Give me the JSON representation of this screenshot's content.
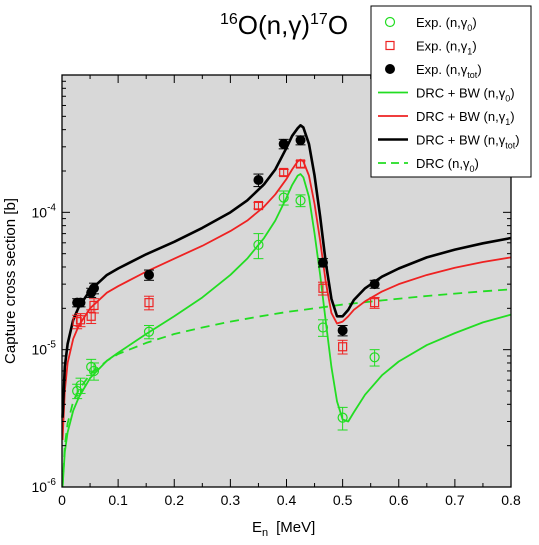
{
  "chart_data": {
    "type": "scatter",
    "title_parts": {
      "a_mass": "16",
      "a_sym": "O(n,γ)",
      "b_mass": "17",
      "b_sym": "O"
    },
    "xlabel": {
      "main": "E",
      "sub": "n",
      "unit": "[MeV]"
    },
    "ylabel": "Capture cross section  [b]",
    "x_scale": "linear",
    "y_scale": "log",
    "xlim": [
      0,
      0.8
    ],
    "ylim": [
      1e-06,
      0.001
    ],
    "x_ticks": [
      "0",
      "0.1",
      "0.2",
      "0.3",
      "0.4",
      "0.5",
      "0.6",
      "0.7",
      "0.8"
    ],
    "y_tick_labels": [
      {
        "value": 1e-06,
        "base": "10",
        "exp": "-6"
      },
      {
        "value": 1e-05,
        "base": "10",
        "exp": "-5"
      },
      {
        "value": 0.0001,
        "base": "10",
        "exp": "-4"
      }
    ],
    "background_color": "#d8d8d8",
    "grid": false,
    "legend_position": "top-right",
    "legend": [
      {
        "label": "Exp. (n,γ",
        "sub": "0",
        "tail": ")",
        "style": "open-circle",
        "color": "#22dd22"
      },
      {
        "label": "Exp. (n,γ",
        "sub": "1",
        "tail": ")",
        "style": "open-square",
        "color": "#ee2222"
      },
      {
        "label": "Exp. (n,γ",
        "sub": "tot",
        "tail": ")",
        "style": "filled-circle",
        "color": "#000000"
      },
      {
        "label": "DRC + BW (n,γ",
        "sub": "0",
        "tail": ")",
        "style": "solid",
        "color": "#22dd22"
      },
      {
        "label": "DRC + BW (n,γ",
        "sub": "1",
        "tail": ")",
        "style": "solid",
        "color": "#ee2222"
      },
      {
        "label": "DRC + BW (n,γ",
        "sub": "tot",
        "tail": ")",
        "style": "solid",
        "color": "#000000"
      },
      {
        "label": "DRC (n,γ",
        "sub": "0",
        "tail": ")",
        "style": "dashed",
        "color": "#22dd22"
      }
    ],
    "points": {
      "gamma0": [
        {
          "x": 0.027,
          "y": 5e-06,
          "err": 6e-07
        },
        {
          "x": 0.033,
          "y": 5.5e-06,
          "err": 7e-07
        },
        {
          "x": 0.052,
          "y": 7.5e-06,
          "err": 1e-06
        },
        {
          "x": 0.057,
          "y": 7e-06,
          "err": 1e-06
        },
        {
          "x": 0.155,
          "y": 1.35e-05,
          "err": 1.5e-06
        },
        {
          "x": 0.35,
          "y": 5.8e-05,
          "err": 1.2e-05
        },
        {
          "x": 0.395,
          "y": 0.000128,
          "err": 1.5e-05
        },
        {
          "x": 0.425,
          "y": 0.000122,
          "err": 1.2e-05
        },
        {
          "x": 0.465,
          "y": 1.45e-05,
          "err": 2e-06
        },
        {
          "x": 0.5,
          "y": 3.2e-06,
          "err": 6e-07
        },
        {
          "x": 0.557,
          "y": 8.8e-06,
          "err": 1.2e-06
        }
      ],
      "gamma1": [
        {
          "x": 0.027,
          "y": 1.6e-05,
          "err": 1.8e-06
        },
        {
          "x": 0.033,
          "y": 1.65e-05,
          "err": 1.8e-06
        },
        {
          "x": 0.052,
          "y": 1.75e-05,
          "err": 2e-06
        },
        {
          "x": 0.057,
          "y": 2.1e-05,
          "err": 2.5e-06
        },
        {
          "x": 0.155,
          "y": 2.2e-05,
          "err": 2.5e-06
        },
        {
          "x": 0.35,
          "y": 0.000112,
          "err": 6e-06
        },
        {
          "x": 0.395,
          "y": 0.000195,
          "err": 1e-05
        },
        {
          "x": 0.425,
          "y": 0.000225,
          "err": 1.2e-05
        },
        {
          "x": 0.465,
          "y": 2.8e-05,
          "err": 3e-06
        },
        {
          "x": 0.5,
          "y": 1.05e-05,
          "err": 1.2e-06
        },
        {
          "x": 0.557,
          "y": 2.2e-05,
          "err": 2e-06
        }
      ],
      "gammatot": [
        {
          "x": 0.027,
          "y": 2.2e-05,
          "err": 1.5e-06
        },
        {
          "x": 0.033,
          "y": 2.2e-05,
          "err": 1.5e-06
        },
        {
          "x": 0.052,
          "y": 2.6e-05,
          "err": 2e-06
        },
        {
          "x": 0.057,
          "y": 2.8e-05,
          "err": 2.5e-06
        },
        {
          "x": 0.155,
          "y": 3.5e-05,
          "err": 3e-06
        },
        {
          "x": 0.35,
          "y": 0.000172,
          "err": 1.8e-05
        },
        {
          "x": 0.395,
          "y": 0.000315,
          "err": 2.5e-05
        },
        {
          "x": 0.425,
          "y": 0.000335,
          "err": 2.5e-05
        },
        {
          "x": 0.465,
          "y": 4.3e-05,
          "err": 3e-06
        },
        {
          "x": 0.5,
          "y": 1.38e-05,
          "err": 1.2e-06
        },
        {
          "x": 0.557,
          "y": 3e-05,
          "err": 2e-06
        }
      ]
    },
    "curves": {
      "drc_bw_gamma0": {
        "x": [
          0.001,
          0.005,
          0.01,
          0.02,
          0.03,
          0.05,
          0.08,
          0.1,
          0.15,
          0.2,
          0.25,
          0.3,
          0.33,
          0.36,
          0.38,
          0.4,
          0.41,
          0.42,
          0.425,
          0.43,
          0.44,
          0.45,
          0.46,
          0.47,
          0.48,
          0.49,
          0.5,
          0.51,
          0.52,
          0.54,
          0.57,
          0.6,
          0.65,
          0.7,
          0.75,
          0.8
        ],
        "y": [
          1e-06,
          1.8e-06,
          2.5e-06,
          3.6e-06,
          4.5e-06,
          6.2e-06,
          8.3e-06,
          9.5e-06,
          1.3e-05,
          1.75e-05,
          2.4e-05,
          3.5e-05,
          4.6e-05,
          6.5e-05,
          8.7e-05,
          0.000128,
          0.000158,
          0.000185,
          0.00019,
          0.00018,
          0.00013,
          7e-05,
          3.5e-05,
          1.6e-05,
          7.5e-06,
          4.2e-06,
          3.1e-06,
          3e-06,
          3.5e-06,
          4.7e-06,
          6.5e-06,
          8.2e-06,
          1.08e-05,
          1.32e-05,
          1.58e-05,
          1.8e-05
        ]
      },
      "drc_bw_gamma1": {
        "x": [
          0.001,
          0.005,
          0.01,
          0.02,
          0.03,
          0.05,
          0.08,
          0.1,
          0.15,
          0.2,
          0.25,
          0.3,
          0.33,
          0.36,
          0.38,
          0.4,
          0.41,
          0.42,
          0.425,
          0.43,
          0.44,
          0.45,
          0.46,
          0.47,
          0.48,
          0.49,
          0.5,
          0.51,
          0.52,
          0.54,
          0.57,
          0.6,
          0.65,
          0.7,
          0.75,
          0.8
        ],
        "y": [
          2.2e-06,
          5e-06,
          8e-06,
          1.2e-05,
          1.5e-05,
          2e-05,
          2.6e-05,
          2.9e-05,
          3.7e-05,
          4.6e-05,
          5.7e-05,
          7.3e-05,
          8.7e-05,
          0.00011,
          0.000135,
          0.000175,
          0.000205,
          0.000235,
          0.000242,
          0.000235,
          0.000185,
          0.000115,
          6.2e-05,
          3.1e-05,
          1.85e-05,
          1.55e-05,
          1.6e-05,
          1.75e-05,
          1.95e-05,
          2.25e-05,
          2.65e-05,
          3e-05,
          3.5e-05,
          3.95e-05,
          4.35e-05,
          4.7e-05
        ]
      },
      "drc_bw_gammatot": {
        "x": [
          0.001,
          0.005,
          0.01,
          0.02,
          0.03,
          0.05,
          0.08,
          0.1,
          0.15,
          0.2,
          0.25,
          0.3,
          0.33,
          0.36,
          0.38,
          0.4,
          0.41,
          0.42,
          0.425,
          0.43,
          0.44,
          0.45,
          0.46,
          0.47,
          0.48,
          0.49,
          0.5,
          0.51,
          0.52,
          0.54,
          0.57,
          0.6,
          0.65,
          0.7,
          0.75,
          0.8
        ],
        "y": [
          3.2e-06,
          7.5e-06,
          1.1e-05,
          1.65e-05,
          2.05e-05,
          2.7e-05,
          3.5e-05,
          3.9e-05,
          4.95e-05,
          6.1e-05,
          7.7e-05,
          0.0001,
          0.000122,
          0.00016,
          0.000205,
          0.000295,
          0.00036,
          0.00041,
          0.00043,
          0.000415,
          0.000315,
          0.000185,
          9.3e-05,
          4.3e-05,
          2.35e-05,
          1.75e-05,
          1.75e-05,
          1.95e-05,
          2.3e-05,
          2.8e-05,
          3.4e-05,
          3.9e-05,
          4.7e-05,
          5.35e-05,
          5.95e-05,
          6.5e-05
        ]
      },
      "drc_gamma0": {
        "x": [
          0.001,
          0.005,
          0.01,
          0.02,
          0.03,
          0.05,
          0.08,
          0.1,
          0.15,
          0.2,
          0.25,
          0.3,
          0.35,
          0.4,
          0.45,
          0.5,
          0.55,
          0.6,
          0.65,
          0.7,
          0.75,
          0.8
        ],
        "y": [
          1e-06,
          2e-06,
          2.9e-06,
          4.2e-06,
          5.1e-06,
          6.6e-06,
          8.3e-06,
          9.3e-06,
          1.12e-05,
          1.3e-05,
          1.45e-05,
          1.6e-05,
          1.74e-05,
          1.88e-05,
          2e-05,
          2.13e-05,
          2.24e-05,
          2.35e-05,
          2.46e-05,
          2.56e-05,
          2.66e-05,
          2.75e-05
        ]
      }
    }
  }
}
